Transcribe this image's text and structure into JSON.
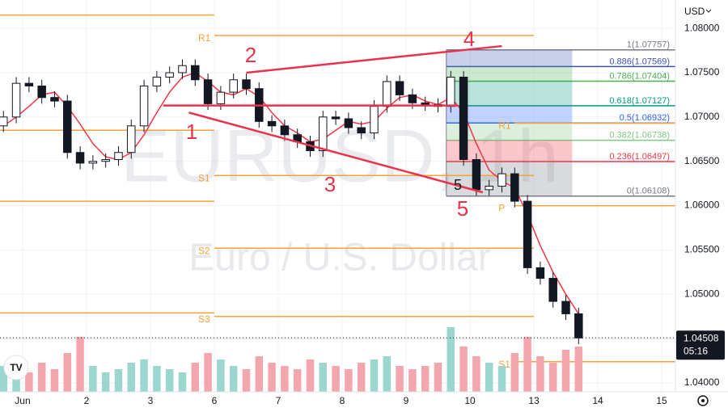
{
  "chart_data": {
    "type": "candlestick",
    "title": "EURUSD, 1h",
    "subtitle": "Euro / U.S. Dollar",
    "currency": "USD",
    "xlim": [
      -0.354,
      10.215
    ],
    "xticks": [
      {
        "value": 0,
        "label": "Jun"
      },
      {
        "value": 1,
        "label": "2"
      },
      {
        "value": 2,
        "label": "3"
      },
      {
        "value": 3,
        "label": "6"
      },
      {
        "value": 4,
        "label": "7"
      },
      {
        "value": 5,
        "label": "8"
      },
      {
        "value": 6,
        "label": "9"
      },
      {
        "value": 7,
        "label": "10"
      },
      {
        "value": 8,
        "label": "13"
      },
      {
        "value": 9,
        "label": "14"
      },
      {
        "value": 10,
        "label": "15"
      }
    ],
    "ylim": [
      1.039,
      1.0832
    ],
    "yticks": [
      {
        "value": 1.08,
        "label": "1.08000"
      },
      {
        "value": 1.075,
        "label": "1.07500"
      },
      {
        "value": 1.07,
        "label": "1.07000"
      },
      {
        "value": 1.065,
        "label": "1.06500"
      },
      {
        "value": 1.06,
        "label": "1.06000"
      },
      {
        "value": 1.055,
        "label": "1.05500"
      },
      {
        "value": 1.05,
        "label": "1.05000"
      },
      {
        "value": 1.045,
        "label": "1.04500"
      },
      {
        "value": 1.04,
        "label": "1.04000"
      }
    ],
    "grid": true,
    "candle_color": "#131722",
    "x": [
      -0.3,
      -0.1,
      0.1,
      0.3,
      0.5,
      0.7,
      0.9,
      1.1,
      1.3,
      1.5,
      1.7,
      1.9,
      2.1,
      2.3,
      2.5,
      2.7,
      2.9,
      3.1,
      3.3,
      3.5,
      3.7,
      3.9,
      4.1,
      4.3,
      4.5,
      4.7,
      4.9,
      5.1,
      5.3,
      5.5,
      5.7,
      5.9,
      6.1,
      6.3,
      6.5,
      6.7,
      6.9,
      7.1,
      7.3,
      7.5,
      7.7,
      7.9,
      8.1,
      8.3,
      8.5,
      8.7
    ],
    "open": [
      1.069,
      1.07,
      1.0738,
      1.0735,
      1.0722,
      1.0718,
      1.066,
      1.0648,
      1.065,
      1.0652,
      1.066,
      1.069,
      1.0735,
      1.0745,
      1.075,
      1.0758,
      1.0742,
      1.0715,
      1.0728,
      1.0742,
      1.0732,
      1.0695,
      1.069,
      1.068,
      1.0672,
      1.0662,
      1.07,
      1.0698,
      1.0688,
      1.0682,
      1.0712,
      1.074,
      1.0725,
      1.0716,
      1.0714,
      1.0712,
      1.0745,
      1.0652,
      1.0618,
      1.0622,
      1.0636,
      1.0605,
      1.053,
      1.0518,
      1.0492,
      1.0478
    ],
    "high": [
      1.0707,
      1.0745,
      1.0745,
      1.0742,
      1.0729,
      1.0725,
      1.0667,
      1.0657,
      1.0659,
      1.0667,
      1.0697,
      1.0742,
      1.0752,
      1.0757,
      1.0765,
      1.0765,
      1.0749,
      1.0735,
      1.0749,
      1.0749,
      1.0739,
      1.0702,
      1.0697,
      1.0687,
      1.0679,
      1.0707,
      1.0707,
      1.0705,
      1.0695,
      1.0719,
      1.0747,
      1.0747,
      1.0732,
      1.0723,
      1.0721,
      1.0752,
      1.0752,
      1.0659,
      1.0629,
      1.0643,
      1.0643,
      1.0612,
      1.0537,
      1.0525,
      1.0499,
      1.0485
    ],
    "low": [
      1.0683,
      1.0693,
      1.0728,
      1.0715,
      1.0711,
      1.0653,
      1.0641,
      1.0641,
      1.0643,
      1.0645,
      1.0653,
      1.0683,
      1.0728,
      1.0738,
      1.0743,
      1.0735,
      1.0708,
      1.0708,
      1.0721,
      1.0725,
      1.0688,
      1.0683,
      1.0673,
      1.0665,
      1.0655,
      1.0655,
      1.0691,
      1.0681,
      1.0675,
      1.0675,
      1.0705,
      1.0718,
      1.0709,
      1.0707,
      1.0705,
      1.0705,
      1.0645,
      1.0611,
      1.0611,
      1.0615,
      1.0598,
      1.0523,
      1.0511,
      1.0485,
      1.0471,
      1.04438
    ],
    "close": [
      1.07,
      1.0738,
      1.0735,
      1.0722,
      1.0718,
      1.066,
      1.0648,
      1.065,
      1.0652,
      1.066,
      1.069,
      1.0735,
      1.0745,
      1.075,
      1.0758,
      1.0742,
      1.0715,
      1.0728,
      1.0742,
      1.0732,
      1.0695,
      1.069,
      1.068,
      1.0672,
      1.0662,
      1.07,
      1.0698,
      1.0688,
      1.0682,
      1.0712,
      1.074,
      1.0725,
      1.0716,
      1.0714,
      1.0712,
      1.0745,
      1.0652,
      1.0618,
      1.0622,
      1.0636,
      1.0605,
      1.053,
      1.0518,
      1.0492,
      1.0478,
      1.04508
    ],
    "volume": [
      40,
      55,
      30,
      45,
      35,
      60,
      85,
      40,
      30,
      35,
      45,
      50,
      40,
      35,
      30,
      45,
      60,
      50,
      40,
      35,
      55,
      45,
      40,
      35,
      50,
      45,
      40,
      35,
      45,
      50,
      55,
      40,
      35,
      40,
      45,
      100,
      70,
      55,
      45,
      40,
      60,
      85,
      55,
      45,
      65,
      70
    ],
    "moving_average": {
      "color": "#f23645",
      "values": [
        1.069,
        1.07,
        1.0712,
        1.0725,
        1.0728,
        1.0712,
        1.0692,
        1.067,
        1.0655,
        1.0652,
        1.066,
        1.068,
        1.0705,
        1.0728,
        1.0745,
        1.075,
        1.074,
        1.0728,
        1.0725,
        1.0732,
        1.0723,
        1.0705,
        1.069,
        1.0682,
        1.0672,
        1.0675,
        1.0685,
        1.0695,
        1.0692,
        1.0695,
        1.071,
        1.0722,
        1.0725,
        1.0718,
        1.0714,
        1.0722,
        1.0705,
        1.067,
        1.064,
        1.0628,
        1.062,
        1.059,
        1.0555,
        1.0525,
        1.05,
        1.0478
      ]
    },
    "pivots": [
      {
        "value": 1.0815,
        "x": [
          -0.354,
          3.0
        ]
      },
      {
        "value": 1.0685,
        "x": [
          -0.354,
          3.0
        ]
      },
      {
        "value": 1.0605,
        "x": [
          -0.354,
          3.0
        ]
      },
      {
        "value": 1.0479,
        "x": [
          -0.354,
          3.0
        ]
      },
      {
        "label": "R1",
        "value": 1.0792,
        "x": [
          3.0,
          8.0
        ]
      },
      {
        "label": "S1",
        "value": 1.0634,
        "x": [
          3.0,
          8.0
        ]
      },
      {
        "label": "S2",
        "value": 1.0552,
        "x": [
          3.0,
          8.0
        ]
      },
      {
        "label": "S3",
        "value": 1.0475,
        "x": [
          3.0,
          8.0
        ]
      },
      {
        "label": "R1",
        "value": 1.0693,
        "x": [
          7.7,
          10.215
        ]
      },
      {
        "label": "P",
        "value": 1.06,
        "x": [
          7.7,
          10.215
        ]
      },
      {
        "label": "S1",
        "value": 1.0424,
        "x": [
          7.7,
          10.215
        ]
      }
    ],
    "pivot_color": "#f7a23b",
    "fib_x": [
      6.63,
      8.6
    ],
    "fib_levels": [
      {
        "value": 1.07757,
        "label": "1(1.07757)",
        "color": "#787b86"
      },
      {
        "value": 1.07569,
        "label": "0.886(1.07569)",
        "color": "#3f51b5"
      },
      {
        "value": 1.07404,
        "label": "0.786(1.07404)",
        "color": "#4caf50"
      },
      {
        "value": 1.07127,
        "label": "0.618(1.07127)",
        "color": "#089981"
      },
      {
        "value": 1.06932,
        "label": "0.5(1.06932)",
        "color": "#2962ff"
      },
      {
        "value": 1.06738,
        "label": "0.382(1.06738)",
        "color": "#81c784"
      },
      {
        "value": 1.06497,
        "label": "0.236(1.06497)",
        "color": "#f23645"
      },
      {
        "value": 1.06108,
        "label": "0(1.06108)",
        "color": "#787b86"
      }
    ],
    "trend_lines": [
      {
        "color": "#e8334a",
        "x": [
          3.5,
          7.5
        ],
        "y": [
          1.075,
          1.078
        ]
      },
      {
        "color": "#e8334a",
        "x": [
          2.6,
          7.2
        ],
        "y": [
          1.0705,
          1.0615
        ]
      },
      {
        "color": "#e8334a",
        "x": [
          2.2,
          6.8
        ],
        "y": [
          1.0713,
          1.0713
        ]
      }
    ],
    "annotations": [
      "1",
      "2",
      "3",
      "4",
      "5",
      "5"
    ],
    "last_price": {
      "value": 1.04508,
      "label": "1.04508"
    },
    "countdown": "05:16"
  }
}
